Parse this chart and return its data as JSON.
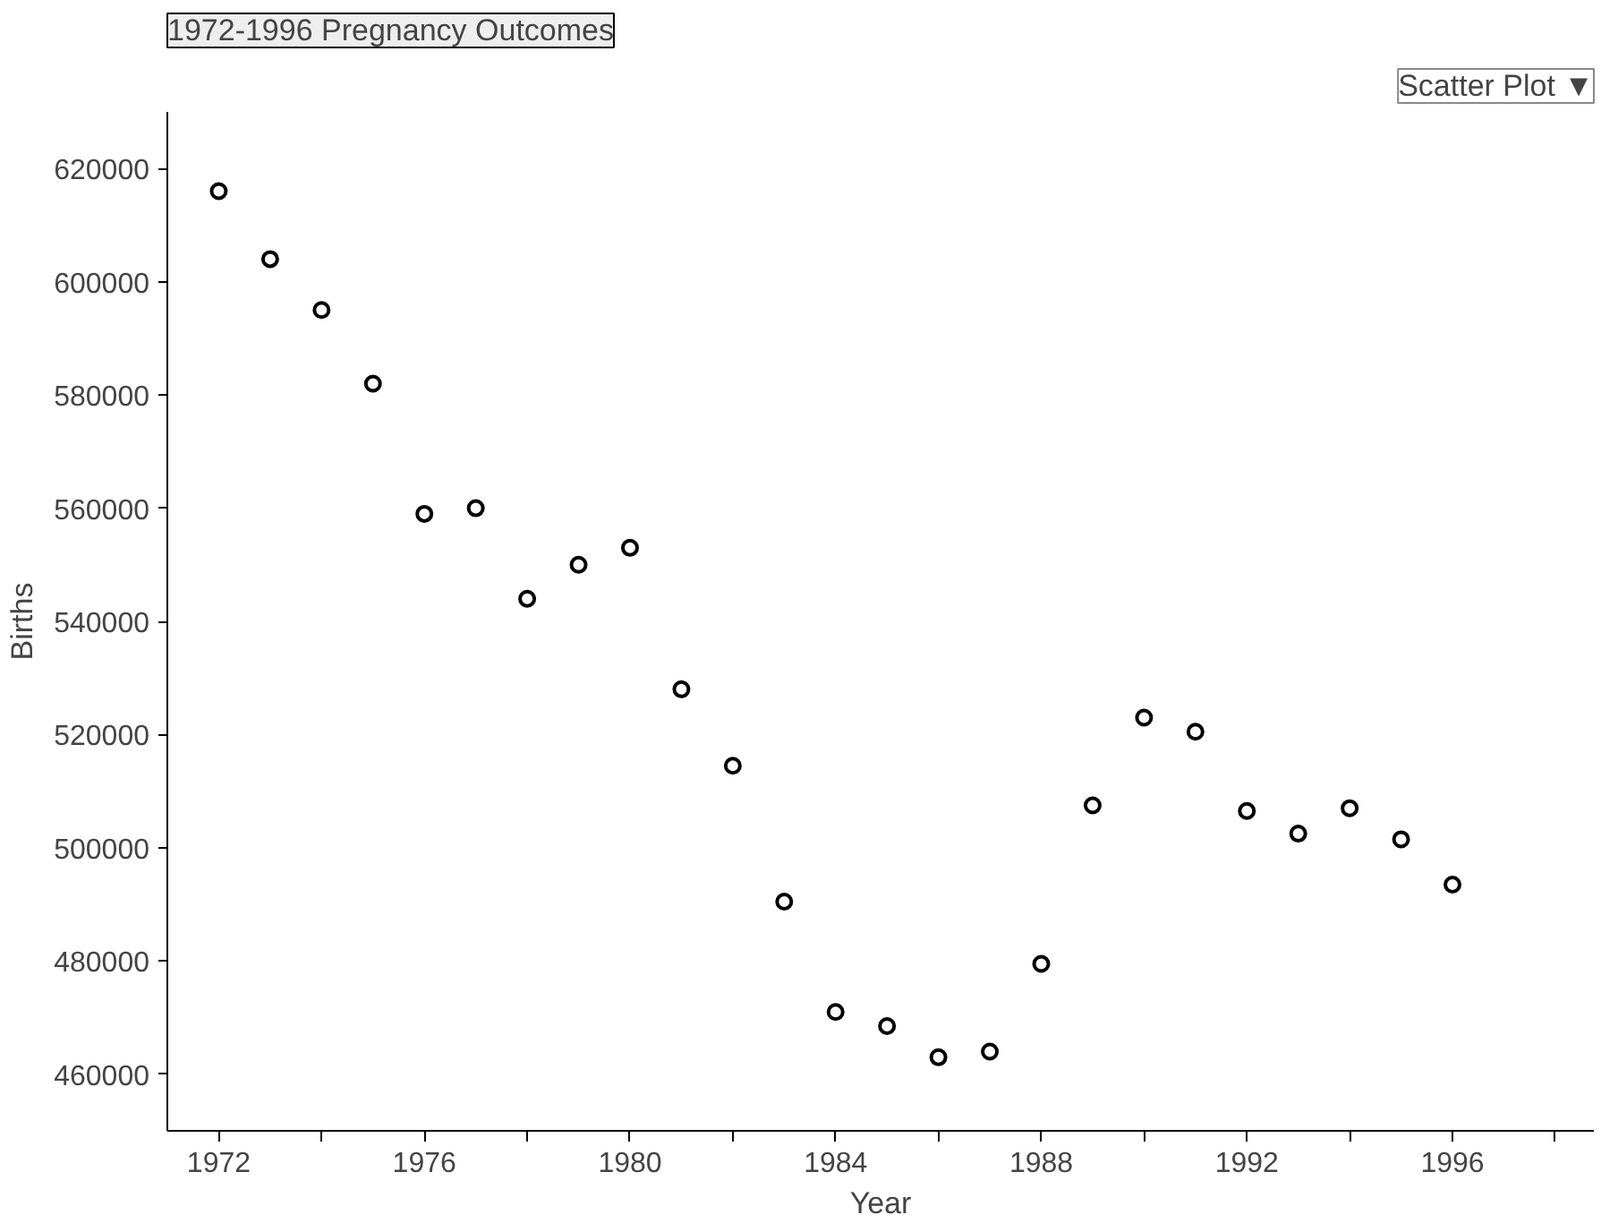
{
  "chart_data": {
    "type": "scatter",
    "title": "1972-1996 Pregnancy Outcomes",
    "xlabel": "Year",
    "ylabel": "Births",
    "annotations": [
      "Scatter Plot ▼"
    ],
    "x": [
      1972,
      1973,
      1974,
      1975,
      1976,
      1977,
      1978,
      1979,
      1980,
      1981,
      1982,
      1983,
      1984,
      1985,
      1986,
      1987,
      1988,
      1989,
      1990,
      1991,
      1992,
      1993,
      1994,
      1995,
      1996
    ],
    "series": [
      {
        "color": "#000000",
        "values": [
          616000,
          604000,
          595000,
          582000,
          559000,
          560000,
          544000,
          550000,
          553000,
          528000,
          514500,
          490500,
          471000,
          468500,
          463000,
          464000,
          479500,
          507500,
          523000,
          520500,
          506500,
          502500,
          507000,
          501500,
          493500
        ]
      }
    ],
    "xlim": [
      1971,
      1998.75
    ],
    "ylim": [
      450000,
      630000
    ],
    "xticks": [
      1972,
      {
        "value": 1974,
        "label": null
      },
      1976,
      {
        "value": 1978,
        "label": null
      },
      1980,
      {
        "value": 1982,
        "label": null
      },
      1984,
      {
        "value": 1986,
        "label": null
      },
      1988,
      {
        "value": 1990,
        "label": null
      },
      1992,
      {
        "value": 1994,
        "label": null
      },
      1996,
      {
        "value": 1998,
        "label": null
      }
    ],
    "yticks": [
      460000,
      480000,
      500000,
      520000,
      540000,
      560000,
      580000,
      600000,
      620000
    ],
    "grid": false,
    "marker": "circle"
  }
}
